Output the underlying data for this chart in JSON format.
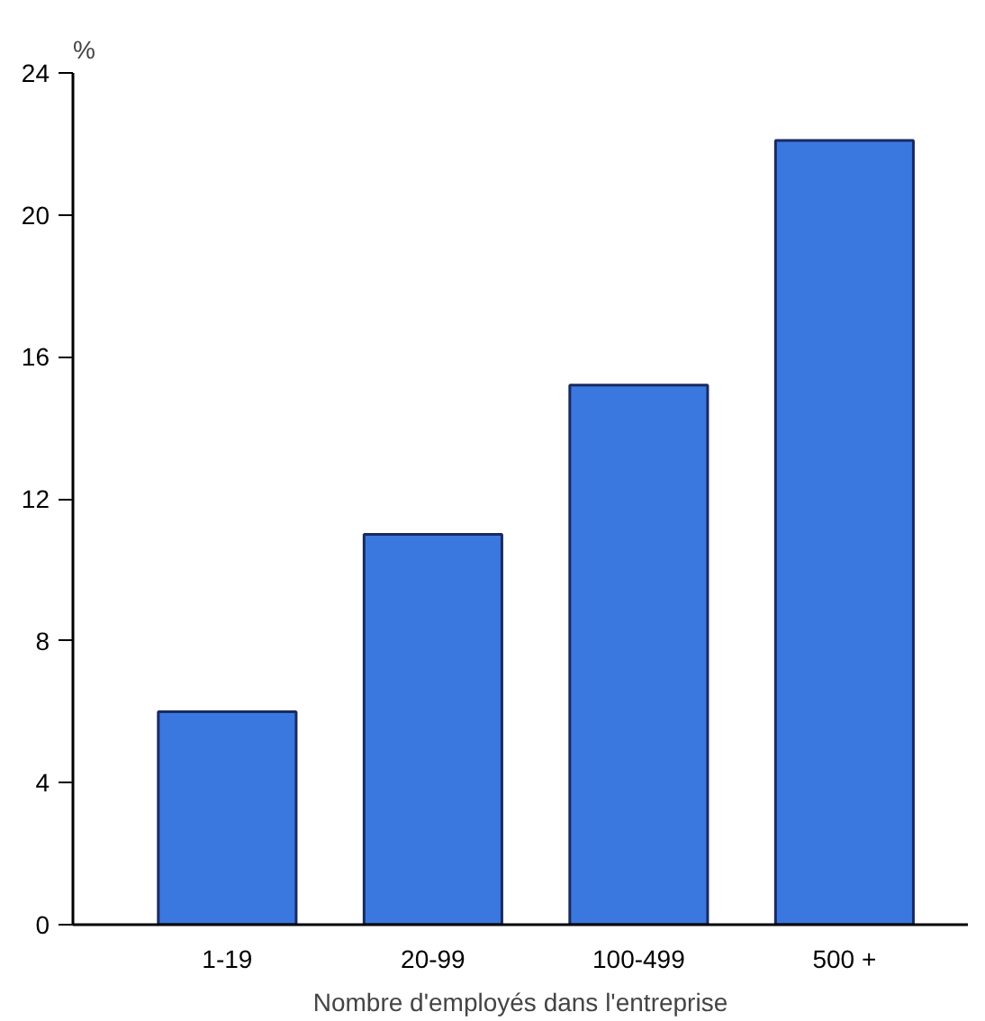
{
  "chart_data": {
    "type": "bar",
    "categories": [
      "1-19",
      "20-99",
      "100-499",
      "500 +"
    ],
    "values": [
      6,
      11,
      15.2,
      22.1
    ],
    "color": "#3a78e0",
    "ylabel": "%",
    "xlabel": "Nombre d'employés dans l'entreprise",
    "ylim": [
      0,
      24
    ],
    "yticks": [
      0,
      4,
      8,
      12,
      16,
      20,
      24
    ],
    "grid": false
  }
}
